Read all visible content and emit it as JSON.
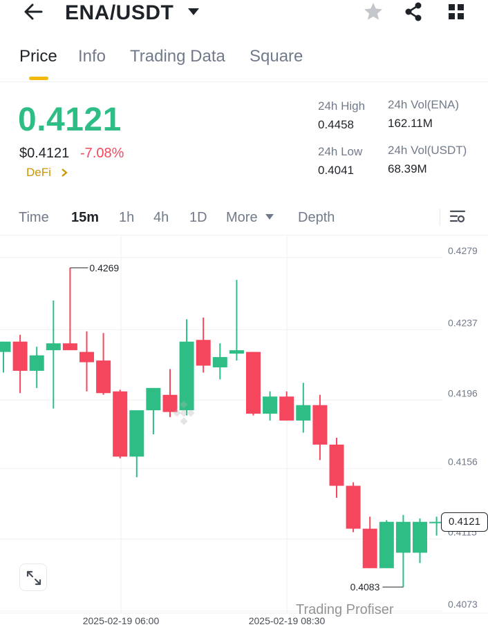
{
  "header": {
    "pair": "ENA/USDT",
    "icons": [
      "back-arrow-icon",
      "caret-down-icon",
      "star-icon",
      "share-icon",
      "grid-icon"
    ]
  },
  "tabs": [
    {
      "label": "Price",
      "active": true
    },
    {
      "label": "Info",
      "active": false
    },
    {
      "label": "Trading Data",
      "active": false
    },
    {
      "label": "Square",
      "active": false
    }
  ],
  "price": {
    "last": "0.4121",
    "usd": "$0.4121",
    "change": "-7.08%",
    "tag": "DeFi"
  },
  "stats": {
    "high_label": "24h High",
    "high_value": "0.4458",
    "low_label": "24h Low",
    "low_value": "0.4041",
    "vol_base_label": "24h Vol(ENA)",
    "vol_base_value": "162.11M",
    "vol_quote_label": "24h Vol(USDT)",
    "vol_quote_value": "68.39M"
  },
  "intervals": [
    {
      "label": "Time",
      "active": false
    },
    {
      "label": "15m",
      "active": true
    },
    {
      "label": "1h",
      "active": false
    },
    {
      "label": "4h",
      "active": false
    },
    {
      "label": "1D",
      "active": false
    },
    {
      "label": "More",
      "active": false
    },
    {
      "label": "Depth",
      "active": false
    }
  ],
  "colors": {
    "up": "#2ebd85",
    "down": "#f6465d",
    "accent": "#f0b90b"
  },
  "chart_data": {
    "type": "candlestick",
    "y_ticks": [
      "0.4279",
      "0.4237",
      "0.4196",
      "0.4156",
      "0.4115",
      "0.4073"
    ],
    "y_tick_values": [
      0.4279,
      0.4237,
      0.4196,
      0.4156,
      0.4115,
      0.4073
    ],
    "ylim": [
      0.4068,
      0.4293
    ],
    "x_labels": [
      "2025-02-19 06:00",
      "2025-02-19 08:30"
    ],
    "current_price": "0.4121",
    "current_price_value": 0.4121,
    "max_annotation": "0.4269",
    "max_value": 0.4269,
    "min_annotation": "0.4083",
    "min_value": 0.4083,
    "candles": [
      {
        "o": 0.422,
        "h": 0.4226,
        "l": 0.4208,
        "c": 0.4226
      },
      {
        "o": 0.4226,
        "h": 0.423,
        "l": 0.4196,
        "c": 0.4209
      },
      {
        "o": 0.4209,
        "h": 0.4223,
        "l": 0.4199,
        "c": 0.4218
      },
      {
        "o": 0.4221,
        "h": 0.425,
        "l": 0.4187,
        "c": 0.4225
      },
      {
        "o": 0.4225,
        "h": 0.4269,
        "l": 0.4221,
        "c": 0.4221
      },
      {
        "o": 0.422,
        "h": 0.4232,
        "l": 0.4197,
        "c": 0.4214
      },
      {
        "o": 0.4215,
        "h": 0.4231,
        "l": 0.4195,
        "c": 0.4196
      },
      {
        "o": 0.4197,
        "h": 0.4198,
        "l": 0.4158,
        "c": 0.4159
      },
      {
        "o": 0.4159,
        "h": 0.4186,
        "l": 0.4147,
        "c": 0.4186
      },
      {
        "o": 0.4186,
        "h": 0.4199,
        "l": 0.4172,
        "c": 0.4199
      },
      {
        "o": 0.4195,
        "h": 0.421,
        "l": 0.4182,
        "c": 0.4185
      },
      {
        "o": 0.4186,
        "h": 0.4239,
        "l": 0.4183,
        "c": 0.4226
      },
      {
        "o": 0.4227,
        "h": 0.424,
        "l": 0.4208,
        "c": 0.4212
      },
      {
        "o": 0.4211,
        "h": 0.4225,
        "l": 0.4204,
        "c": 0.4217
      },
      {
        "o": 0.4219,
        "h": 0.4262,
        "l": 0.4215,
        "c": 0.4221
      },
      {
        "o": 0.422,
        "h": 0.422,
        "l": 0.4183,
        "c": 0.4184
      },
      {
        "o": 0.4184,
        "h": 0.4197,
        "l": 0.418,
        "c": 0.4194
      },
      {
        "o": 0.4194,
        "h": 0.4197,
        "l": 0.418,
        "c": 0.418
      },
      {
        "o": 0.418,
        "h": 0.4202,
        "l": 0.4173,
        "c": 0.4189
      },
      {
        "o": 0.4189,
        "h": 0.4195,
        "l": 0.4157,
        "c": 0.4166
      },
      {
        "o": 0.4166,
        "h": 0.417,
        "l": 0.4135,
        "c": 0.4142
      },
      {
        "o": 0.4142,
        "h": 0.4144,
        "l": 0.4115,
        "c": 0.4117
      },
      {
        "o": 0.4117,
        "h": 0.4124,
        "l": 0.4094,
        "c": 0.4094
      },
      {
        "o": 0.4094,
        "h": 0.4122,
        "l": 0.4094,
        "c": 0.4121
      },
      {
        "o": 0.4103,
        "h": 0.4125,
        "l": 0.4083,
        "c": 0.4121
      },
      {
        "o": 0.4103,
        "h": 0.4123,
        "l": 0.4097,
        "c": 0.4121
      },
      {
        "o": 0.4121,
        "h": 0.4124,
        "l": 0.4113,
        "c": 0.4121
      }
    ]
  },
  "watermark": "Trading Profiser"
}
